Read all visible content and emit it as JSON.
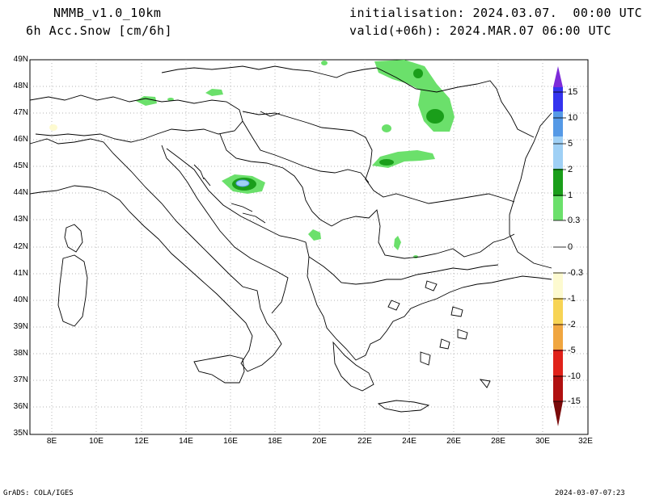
{
  "header": {
    "model": "NMMB_v1.0_10km",
    "field": "6h Acc.Snow [cm/6h]",
    "init": "initialisation: 2024.03.07.  00:00 UTC",
    "valid": "valid(+06h): 2024.MAR.07 06:00 UTC"
  },
  "footer": {
    "credit": "GrADS: COLA/IGES",
    "timestamp": "2024-03-07-07:23"
  },
  "axes": {
    "lat_labels": [
      "49N",
      "48N",
      "47N",
      "46N",
      "45N",
      "44N",
      "43N",
      "42N",
      "41N",
      "40N",
      "39N",
      "38N",
      "37N",
      "36N",
      "35N"
    ],
    "lon_labels": [
      "8E",
      "10E",
      "12E",
      "14E",
      "16E",
      "18E",
      "20E",
      "22E",
      "24E",
      "26E",
      "28E",
      "30E",
      "32E"
    ]
  },
  "colorbar": {
    "labels": [
      "15",
      "10",
      "5",
      "2",
      "1",
      "0.3",
      "0",
      "-0.3",
      "-1",
      "-2",
      "-5",
      "-10",
      "-15"
    ],
    "colors": {
      "c15": "#7d2bd9",
      "c10": "#3333ee",
      "c5": "#5599e6",
      "c2": "#9fd0f5",
      "c1": "#1a9e1a",
      "c03": "#6be06b",
      "cn03": "#fdfad0",
      "cn1": "#f7d455",
      "cn2": "#f0a640",
      "cn5": "#ed6d2e",
      "cn10": "#e0221a",
      "cn15": "#b01010",
      "cend": "#7a0a0a"
    }
  }
}
